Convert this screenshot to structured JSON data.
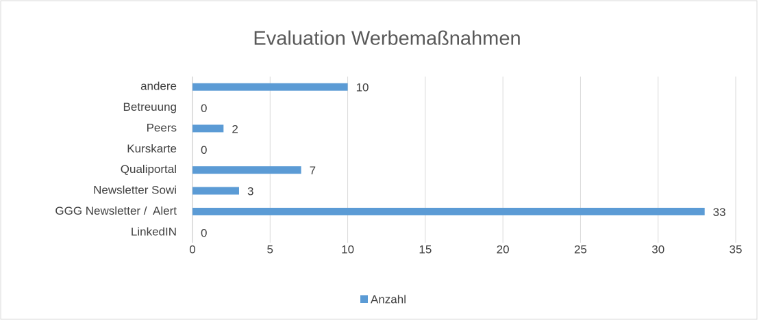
{
  "chart_data": {
    "type": "bar",
    "orientation": "horizontal",
    "title": "Evaluation Werbemaßnahmen",
    "categories": [
      "andere",
      "Betreuung",
      "Peers",
      "Kurskarte",
      "Qualiportal",
      "Newsletter Sowi",
      "GGG Newsletter /  Alert",
      "LinkedIN"
    ],
    "series": [
      {
        "name": "Anzahl",
        "color": "#5b9bd5",
        "values": [
          10,
          0,
          2,
          0,
          7,
          3,
          33,
          0
        ]
      }
    ],
    "xlim": [
      0,
      35
    ],
    "xticks": [
      0,
      5,
      10,
      15,
      20,
      25,
      30,
      35
    ],
    "grid": true,
    "legend": "bottom",
    "data_labels": true
  }
}
